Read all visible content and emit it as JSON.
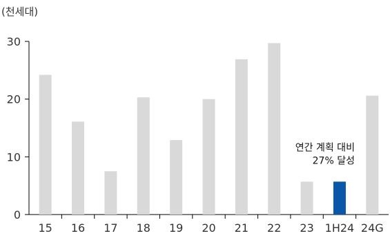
{
  "chart_data": {
    "type": "bar",
    "unit_label": "(천세대)",
    "categories": [
      "15",
      "16",
      "17",
      "18",
      "19",
      "20",
      "21",
      "22",
      "23",
      "1H24",
      "24G"
    ],
    "values": [
      24.2,
      16.1,
      7.5,
      20.3,
      12.9,
      20.0,
      26.9,
      29.7,
      5.7,
      5.7,
      20.6
    ],
    "highlight_category": "1H24",
    "ylim": [
      0,
      30
    ],
    "yticks": [
      0,
      10,
      20,
      30
    ],
    "grid": false,
    "colors": {
      "bar": "#d9d9d9",
      "highlight": "#0a56a8"
    },
    "annotation": {
      "target_category": "1H24",
      "lines": [
        "연간 계획 대비",
        "27% 달성"
      ]
    }
  }
}
